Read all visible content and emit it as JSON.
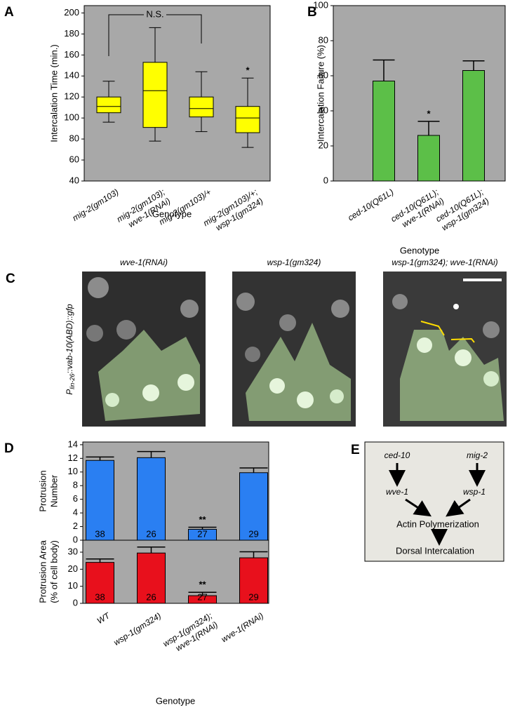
{
  "chart_data": [
    {
      "type": "box",
      "panel_label": "A",
      "ylabel": [
        "Intercalation Time  (min.)"
      ],
      "xlabel": "Genotype",
      "categories": [
        [
          "mig-2(gm103)"
        ],
        [
          "mig-2(gm103);",
          "wve-1(RNAi)"
        ],
        [
          "mig-2(gm103)/+"
        ],
        [
          "mig-2(gm103)/+;",
          "wsp-1(gm324)"
        ]
      ],
      "boxes": [
        {
          "min": 96,
          "q1": 105,
          "median": 111,
          "q3": 120,
          "max": 135
        },
        {
          "min": 78,
          "q1": 91,
          "median": 126,
          "q3": 153,
          "max": 186
        },
        {
          "min": 87,
          "q1": 101,
          "median": 109,
          "q3": 120,
          "max": 144
        },
        {
          "min": 72,
          "q1": 86,
          "median": 100,
          "q3": 111,
          "max": 138
        }
      ],
      "color": "#ffff00",
      "background": "#a8a8a8",
      "ylim": [
        40,
        207
      ],
      "yticks": [
        40,
        60,
        80,
        100,
        120,
        140,
        160,
        180,
        200
      ],
      "bracket_label": "N.S.",
      "significance": [
        null,
        null,
        null,
        "*"
      ]
    },
    {
      "type": "bar",
      "panel_label": "B",
      "ylabel": [
        "Intercalation Failure (%)"
      ],
      "xlabel": "Genotype",
      "categories": [
        [
          "ced-10(Q61L)"
        ],
        [
          "ced-10(Q61L);",
          "wve-1(RNAi)"
        ],
        [
          "ced-10(Q61L);",
          "wsp-1(gm324)"
        ]
      ],
      "values": [
        57,
        26,
        63
      ],
      "errors": [
        12,
        8,
        5.5
      ],
      "color": "#5cbf48",
      "background": "#a8a8a8",
      "ylim": [
        0,
        100
      ],
      "yticks": [
        0,
        20,
        40,
        60,
        80,
        100
      ],
      "significance": [
        null,
        "*",
        null
      ]
    },
    {
      "type": "bar",
      "panel_label": "D",
      "ylabel": [
        "Protrusion",
        "Number"
      ],
      "values": [
        11.7,
        12.1,
        1.6,
        9.9
      ],
      "errors": [
        0.5,
        0.9,
        0.3,
        0.7
      ],
      "n": [
        38,
        26,
        27,
        29
      ],
      "color": "#2a7ff2",
      "background": "#a8a8a8",
      "ylim": [
        0,
        14.4
      ],
      "yticks": [
        0,
        2,
        4,
        6,
        8,
        10,
        12,
        14
      ],
      "significance": [
        null,
        null,
        "**",
        null
      ]
    },
    {
      "type": "bar",
      "ylabel": [
        "Protrusion Area",
        "(% of cell body)"
      ],
      "xlabel": "Genotype",
      "categories": [
        [
          "WT"
        ],
        [
          "wsp-1(gm324)"
        ],
        [
          "wsp-1(gm324);",
          "wve-1(RNAi)"
        ],
        [
          "wve-1(RNAi)"
        ]
      ],
      "values": [
        24,
        29.5,
        4.5,
        26.7
      ],
      "errors": [
        2,
        3.5,
        2,
        3.5
      ],
      "n": [
        38,
        26,
        27,
        29
      ],
      "color": "#e8101c",
      "background": "#a8a8a8",
      "ylim": [
        0,
        37
      ],
      "yticks": [
        0,
        10,
        20,
        30
      ],
      "significance": [
        null,
        null,
        "**",
        null
      ]
    }
  ],
  "panel_c": {
    "panel_label": "C",
    "titles": [
      "wve-1(RNAi)",
      "wsp-1(gm324)",
      "wsp-1(gm324); wve-1(RNAi)"
    ],
    "side_label": {
      "main": "P",
      "subscript": "lin-26",
      "suffix": "::vab-10(ABD)::gfp"
    }
  },
  "panel_e": {
    "panel_label": "E",
    "nodes": [
      "ced-10",
      "mig-2",
      "wve-1",
      "wsp-1",
      "Actin Polymerization",
      "Dorsal Intercalation"
    ]
  }
}
